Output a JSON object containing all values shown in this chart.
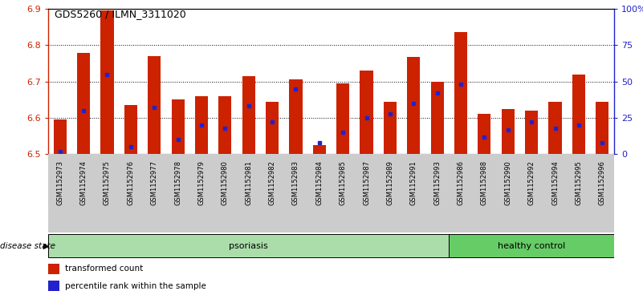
{
  "title": "GDS5260 / ILMN_3311020",
  "samples": [
    "GSM1152973",
    "GSM1152974",
    "GSM1152975",
    "GSM1152976",
    "GSM1152977",
    "GSM1152978",
    "GSM1152979",
    "GSM1152980",
    "GSM1152981",
    "GSM1152982",
    "GSM1152983",
    "GSM1152984",
    "GSM1152985",
    "GSM1152987",
    "GSM1152989",
    "GSM1152991",
    "GSM1152993",
    "GSM1152986",
    "GSM1152988",
    "GSM1152990",
    "GSM1152992",
    "GSM1152994",
    "GSM1152995",
    "GSM1152996"
  ],
  "red_values": [
    6.595,
    6.778,
    6.895,
    6.635,
    6.77,
    6.65,
    6.66,
    6.66,
    6.715,
    6.645,
    6.705,
    6.525,
    6.695,
    6.73,
    6.645,
    6.768,
    6.7,
    6.835,
    6.61,
    6.625,
    6.62,
    6.645,
    6.72,
    6.645
  ],
  "blue_pct": [
    2,
    30,
    55,
    5,
    32,
    10,
    20,
    18,
    33,
    22,
    45,
    8,
    15,
    25,
    28,
    35,
    42,
    48,
    12,
    17,
    22,
    18,
    20,
    8
  ],
  "psoriasis_count": 17,
  "healthy_count": 7,
  "y_min": 6.5,
  "y_max": 6.9,
  "y_ticks": [
    6.5,
    6.6,
    6.7,
    6.8,
    6.9
  ],
  "right_ticks": [
    0,
    25,
    50,
    75,
    100
  ],
  "right_tick_labels": [
    "0",
    "25",
    "50",
    "75",
    "100%"
  ],
  "bar_color": "#CC2200",
  "dot_color": "#2222CC",
  "psoriasis_color": "#AADDAA",
  "healthy_color": "#66CC66",
  "xtick_bg": "#CCCCCC",
  "plot_bg": "#FFFFFF"
}
